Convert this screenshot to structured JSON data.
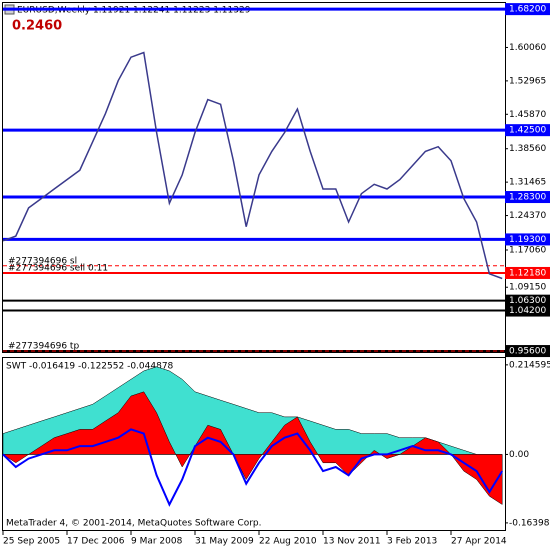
{
  "chart_data": [
    {
      "type": "line",
      "title": "EURUSD,Weekly  1.11921 1.12241 1.11223 1.11329",
      "annotation": "0.2460",
      "categories": [
        "25 Sep 2005",
        null,
        null,
        null,
        null,
        "17 Dec 2006",
        null,
        null,
        null,
        null,
        "9 Mar 2008",
        null,
        null,
        null,
        null,
        "31 May 2009",
        null,
        null,
        null,
        null,
        "22 Aug 2010",
        null,
        null,
        null,
        null,
        "13 Nov 2011",
        null,
        null,
        null,
        null,
        "3 Feb 2013",
        null,
        null,
        null,
        null,
        "27 Apr 2014",
        null,
        null,
        null,
        null
      ],
      "values": [
        1.19,
        1.2,
        1.26,
        1.28,
        1.3,
        1.32,
        1.34,
        1.4,
        1.46,
        1.53,
        1.58,
        1.59,
        1.42,
        1.27,
        1.33,
        1.42,
        1.49,
        1.48,
        1.36,
        1.22,
        1.33,
        1.38,
        1.42,
        1.47,
        1.38,
        1.3,
        1.3,
        1.23,
        1.29,
        1.31,
        1.3,
        1.32,
        1.35,
        1.38,
        1.39,
        1.36,
        1.28,
        1.23,
        1.12,
        1.11
      ],
      "color": "#3a3a8c",
      "ylim": [
        0.954,
        1.695
      ],
      "yticks": [
        {
          "value": 1.6006,
          "label": "1.60060"
        },
        {
          "value": 1.52965,
          "label": "1.52965"
        },
        {
          "value": 1.4587,
          "label": "1.45870"
        },
        {
          "value": 1.3856,
          "label": "1.38560"
        },
        {
          "value": 1.31465,
          "label": "1.31465"
        },
        {
          "value": 1.2437,
          "label": "1.24370"
        },
        {
          "value": 1.1706,
          "label": "1.17060"
        },
        {
          "value": 1.0915,
          "label": "1.09150"
        }
      ],
      "levels": [
        {
          "value": 1.682,
          "label": "1.68200",
          "color": "#0000ff"
        },
        {
          "value": 1.425,
          "label": "1.42500",
          "color": "#0000ff"
        },
        {
          "value": 1.283,
          "label": "1.28300",
          "color": "#0000ff"
        },
        {
          "value": 1.193,
          "label": "1.19300",
          "color": "#0000ff"
        },
        {
          "value": 1.1218,
          "label": "1.12180",
          "color": "#ff0000"
        },
        {
          "value": 1.063,
          "label": "1.06300",
          "color": "#000000"
        },
        {
          "value": 1.042,
          "label": "1.04200",
          "color": "#000000"
        },
        {
          "value": 0.956,
          "label": "0.95600",
          "color": "#000000"
        }
      ],
      "orders": [
        {
          "label": "#277394696 sl",
          "value": 1.137
        },
        {
          "label": "#277394696 sell 0.11",
          "value": 1.1218
        },
        {
          "label": "#277394696 tp",
          "value": 0.956
        }
      ],
      "grid": false
    },
    {
      "type": "area",
      "title": "SWT -0.016419 -0.122552 -0.044878",
      "series": [
        {
          "color": "#40e0d0",
          "style": "area",
          "values": [
            0.05,
            0.06,
            0.07,
            0.08,
            0.09,
            0.1,
            0.11,
            0.12,
            0.14,
            0.16,
            0.18,
            0.2,
            0.21,
            0.2,
            0.18,
            0.15,
            0.14,
            0.13,
            0.12,
            0.11,
            0.1,
            0.1,
            0.09,
            0.09,
            0.08,
            0.07,
            0.06,
            0.06,
            0.05,
            0.05,
            0.05,
            0.04,
            0.04,
            0.04,
            0.03,
            0.02,
            0.01,
            0.0,
            -0.02,
            -0.04
          ]
        },
        {
          "color": "#ff0000",
          "style": "area",
          "values": [
            0.0,
            -0.02,
            0.0,
            0.02,
            0.04,
            0.05,
            0.06,
            0.06,
            0.08,
            0.1,
            0.14,
            0.15,
            0.1,
            0.03,
            -0.03,
            0.02,
            0.07,
            0.06,
            0.0,
            -0.06,
            -0.01,
            0.03,
            0.07,
            0.09,
            0.03,
            -0.02,
            -0.02,
            -0.05,
            -0.02,
            0.01,
            -0.01,
            0.0,
            0.02,
            0.04,
            0.03,
            0.0,
            -0.04,
            -0.06,
            -0.1,
            -0.12
          ]
        },
        {
          "color": "#0000ff",
          "style": "line",
          "values": [
            0.0,
            -0.03,
            -0.01,
            0.0,
            0.01,
            0.01,
            0.02,
            0.02,
            0.03,
            0.04,
            0.06,
            0.05,
            -0.05,
            -0.12,
            -0.06,
            0.02,
            0.04,
            0.03,
            0.0,
            -0.07,
            -0.02,
            0.02,
            0.04,
            0.05,
            0.01,
            -0.04,
            -0.03,
            -0.05,
            -0.01,
            0.0,
            0.0,
            0.01,
            0.02,
            0.01,
            0.01,
            0.0,
            -0.02,
            -0.04,
            -0.09,
            -0.04
          ]
        }
      ],
      "ylim": [
        -0.181,
        0.231
      ],
      "yticks": [
        0.214595,
        {
          "value": 0,
          "label": "0.00"
        },
        -0.163981
      ],
      "grid": false
    }
  ],
  "footer": "MetaTrader 4, © 2001-2014, MetaQuotes Software Corp."
}
